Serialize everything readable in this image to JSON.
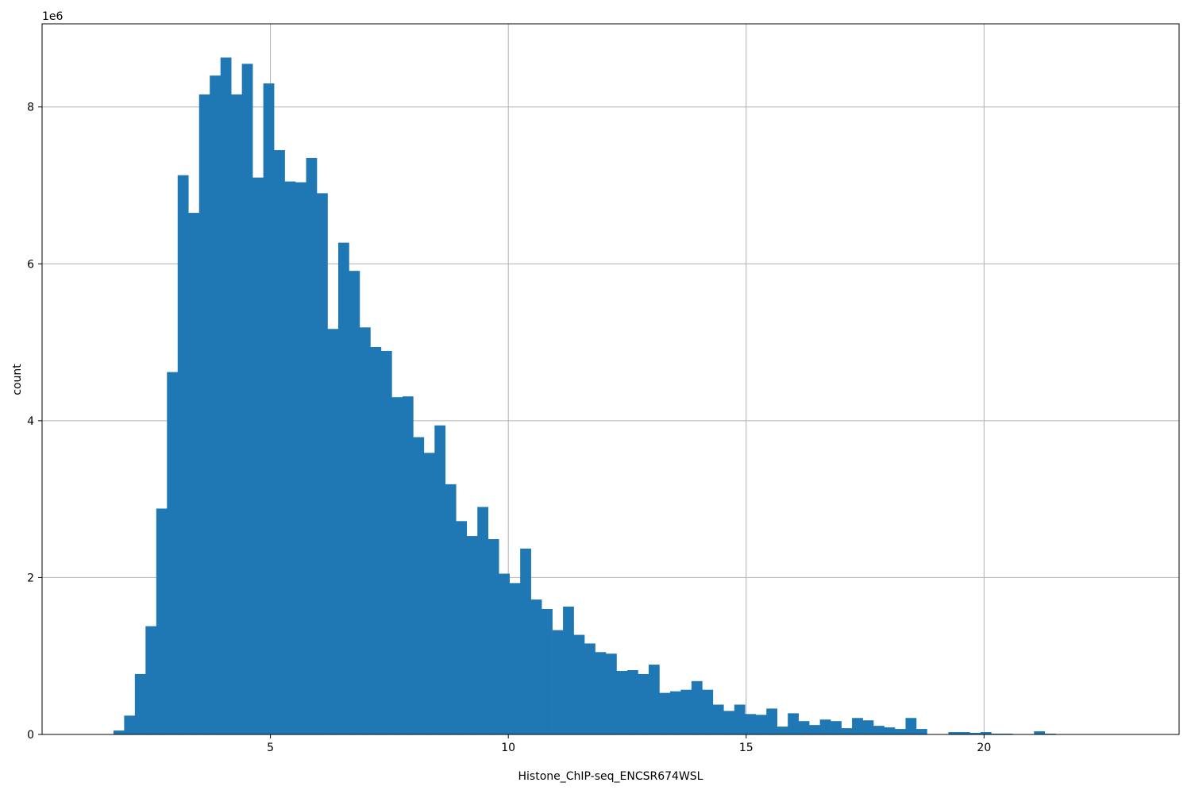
{
  "chart_data": {
    "type": "bar",
    "xlabel": "Histone_ChIP-seq_ENCSR674WSL",
    "ylabel": "count",
    "y_scale_label": "1e6",
    "y_multiplier": 1000000,
    "xlim": [
      0.2,
      24.1
    ],
    "ylim": [
      0,
      9.06
    ],
    "grid": true,
    "color": "#1f77b4",
    "xticks": [
      5,
      10,
      15,
      20
    ],
    "yticks": [
      0,
      2,
      4,
      6,
      8
    ],
    "bin_start": 1.7,
    "bin_width": 0.225,
    "values": [
      0.05,
      0.24,
      0.77,
      1.38,
      2.88,
      4.62,
      7.13,
      6.65,
      8.16,
      8.4,
      8.63,
      8.16,
      8.55,
      7.1,
      8.3,
      7.45,
      7.05,
      7.04,
      7.35,
      6.9,
      5.17,
      6.27,
      5.91,
      5.19,
      4.94,
      4.89,
      4.3,
      4.31,
      3.79,
      3.59,
      3.94,
      3.19,
      2.72,
      2.53,
      2.9,
      2.49,
      2.05,
      1.93,
      2.37,
      1.72,
      1.6,
      1.33,
      1.63,
      1.27,
      1.16,
      1.05,
      1.03,
      0.81,
      0.82,
      0.77,
      0.89,
      0.53,
      0.55,
      0.57,
      0.68,
      0.57,
      0.38,
      0.3,
      0.38,
      0.26,
      0.25,
      0.33,
      0.1,
      0.27,
      0.17,
      0.12,
      0.19,
      0.17,
      0.08,
      0.21,
      0.18,
      0.11,
      0.09,
      0.07,
      0.21,
      0.07,
      0.0,
      0.0,
      0.03,
      0.03,
      0.02,
      0.03,
      0.01,
      0.01,
      0.0,
      0.0,
      0.04,
      0.01
    ]
  }
}
